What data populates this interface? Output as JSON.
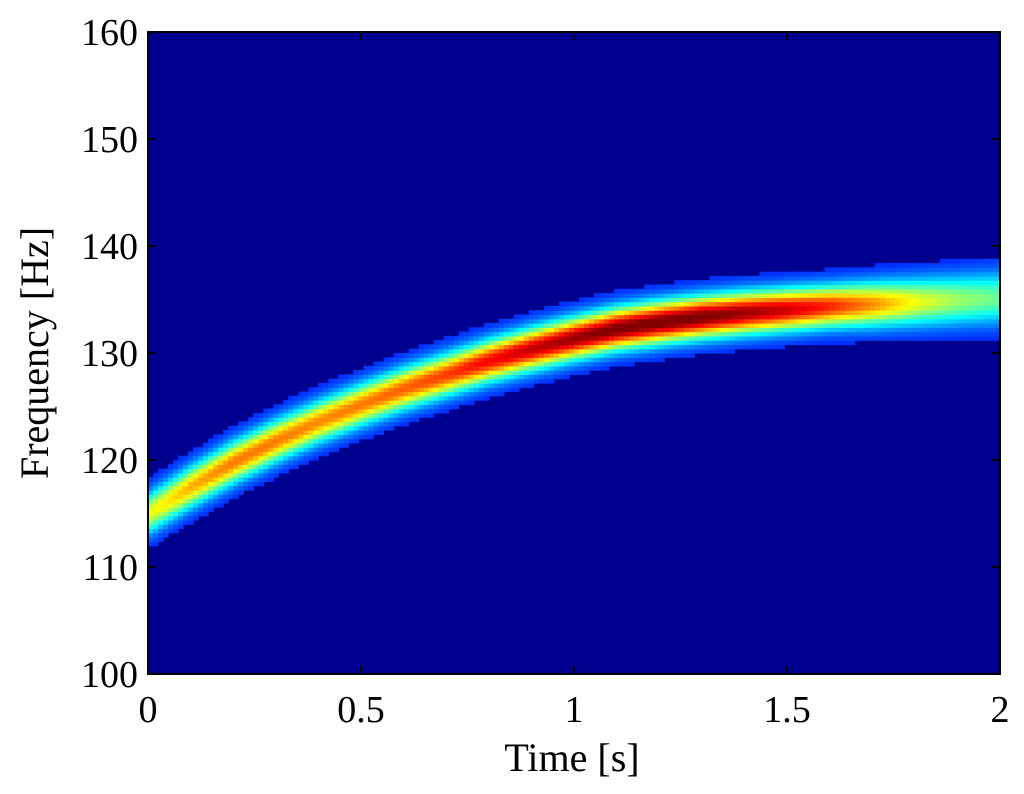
{
  "chart_data": {
    "type": "heatmap",
    "title": "",
    "xlabel": "Time [s]",
    "ylabel": "Frequency [Hz]",
    "xlim": [
      0,
      2
    ],
    "ylim": [
      100,
      160
    ],
    "x_ticks": [
      0,
      0.5,
      1,
      1.5,
      2
    ],
    "x_tick_labels": [
      "0",
      "0.5",
      "1",
      "1.5",
      "2"
    ],
    "y_ticks": [
      100,
      110,
      120,
      130,
      140,
      150,
      160
    ],
    "y_tick_labels": [
      "100",
      "110",
      "120",
      "130",
      "140",
      "150",
      "160"
    ],
    "grid": false,
    "colormap": "jet",
    "background_color": "#00008f",
    "ridge": {
      "time_s": [
        0,
        0.1,
        0.2,
        0.3,
        0.4,
        0.5,
        0.6,
        0.7,
        0.8,
        0.9,
        1.0,
        1.1,
        1.2,
        1.3,
        1.4,
        1.5,
        1.6,
        1.7,
        1.8,
        1.9,
        2.0
      ],
      "frequency_hz": [
        115,
        117.5,
        119.8,
        121.8,
        123.6,
        125.2,
        126.7,
        128.0,
        129.3,
        130.4,
        131.4,
        132.3,
        132.9,
        133.4,
        133.8,
        134.1,
        134.4,
        134.6,
        134.8,
        135.0,
        135.2
      ],
      "intensity": [
        0.5,
        0.62,
        0.68,
        0.68,
        0.66,
        0.68,
        0.71,
        0.75,
        0.82,
        0.88,
        0.93,
        0.97,
        0.98,
        0.97,
        0.93,
        0.87,
        0.78,
        0.66,
        0.52,
        0.42,
        0.36
      ]
    }
  }
}
